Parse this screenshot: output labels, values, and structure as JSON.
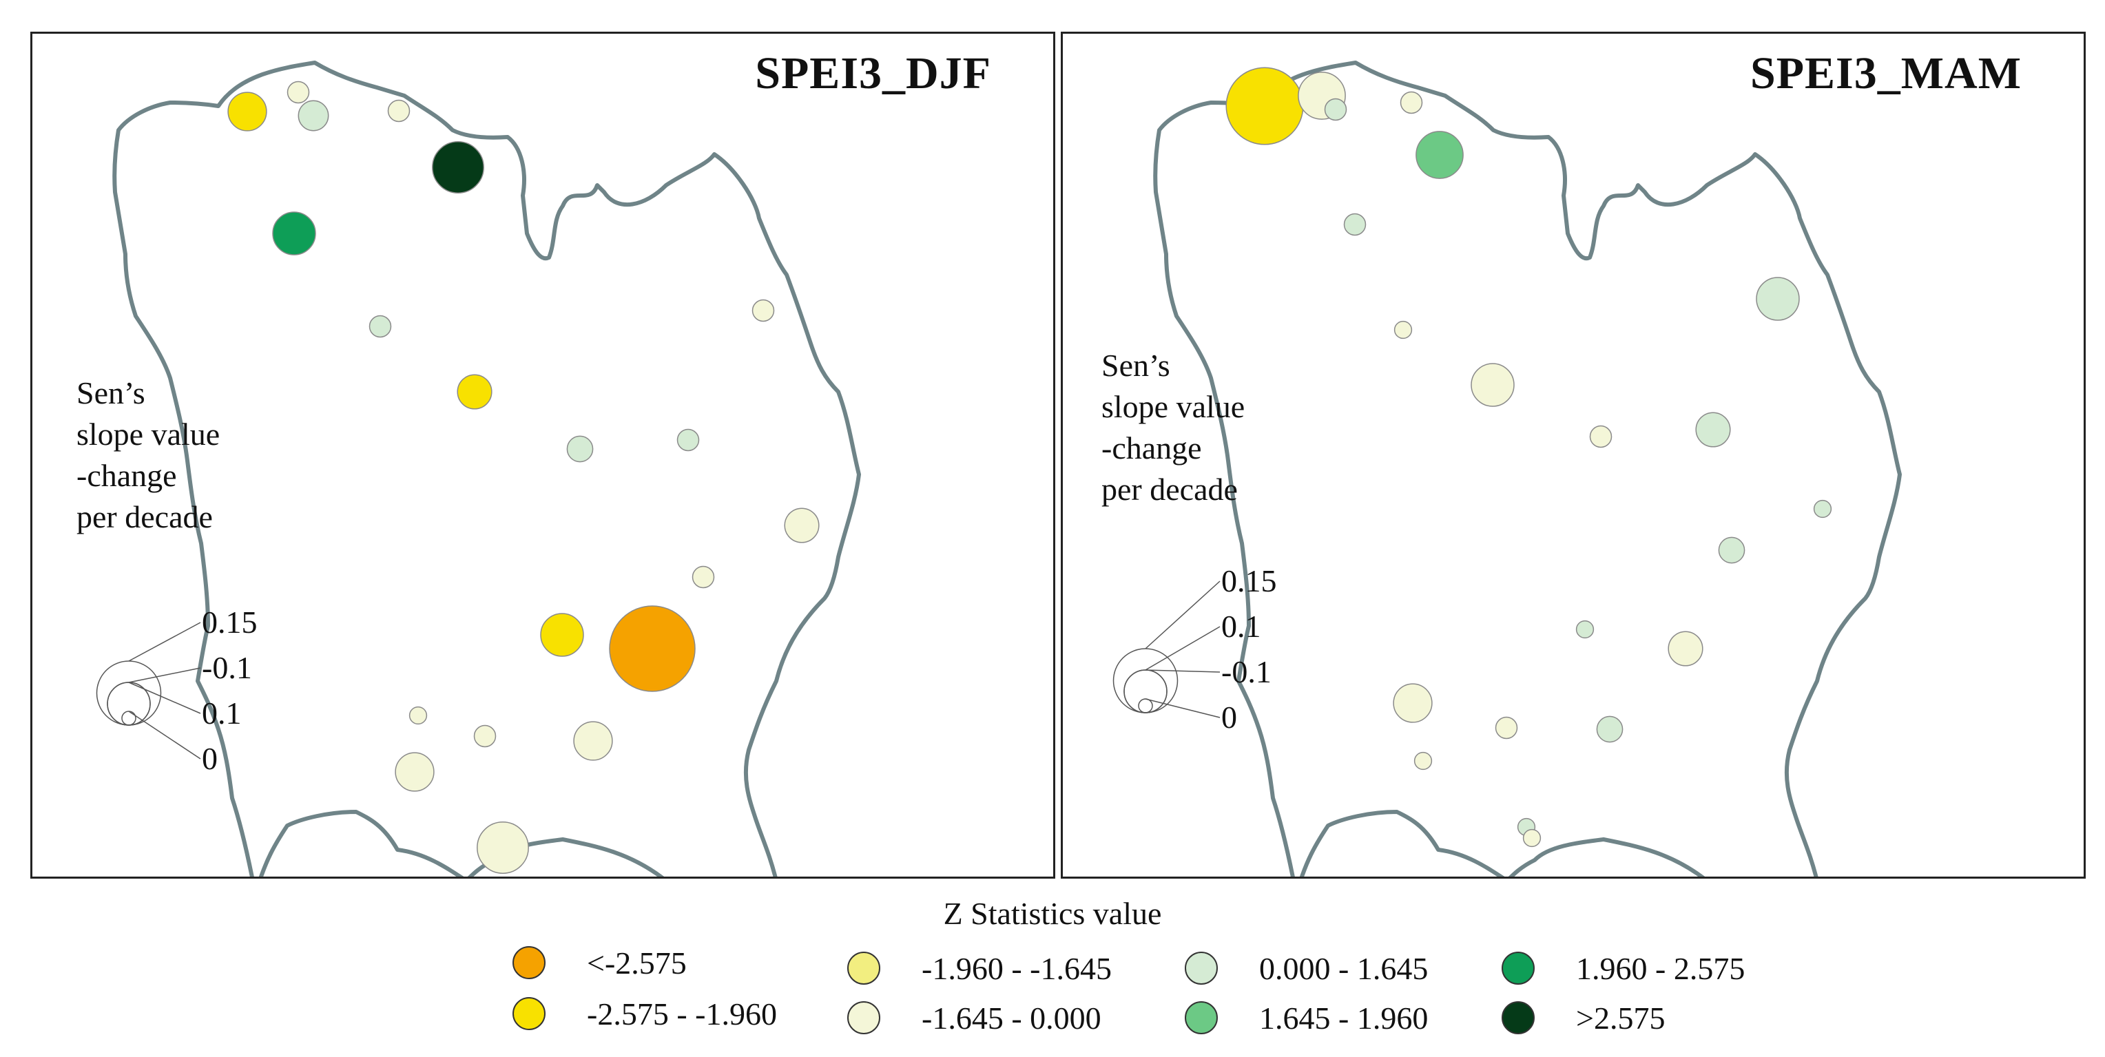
{
  "panels": [
    {
      "title": "SPEI3_DJF",
      "scale_title_lines": [
        "Sen’s",
        "slope value",
        "-change",
        "per decade"
      ],
      "scale_labels": [
        "0.15",
        "-0.1",
        "0.1",
        "0"
      ],
      "stations": [
        {
          "name": "NW corner",
          "class": "neg_1960_2575",
          "slope": 0.09
        },
        {
          "name": "N coast 1",
          "class": "neg_1645_0",
          "slope": 0.05
        },
        {
          "name": "N coast 2",
          "class": "pos_0_1645",
          "slope": 0.07
        },
        {
          "name": "N coast 3",
          "class": "neg_1645_0",
          "slope": 0.05
        },
        {
          "name": "N bay",
          "class": "gt_2575",
          "slope": 0.12
        },
        {
          "name": "W border",
          "class": "pos_1960_2575",
          "slope": 0.1
        },
        {
          "name": "W central",
          "class": "pos_0_1645",
          "slope": 0.05
        },
        {
          "name": "NE",
          "class": "neg_1645_0",
          "slope": 0.05
        },
        {
          "name": "Central N",
          "class": "neg_1960_2575",
          "slope": 0.08
        },
        {
          "name": "Central 1",
          "class": "pos_0_1645",
          "slope": 0.06
        },
        {
          "name": "Central 2",
          "class": "pos_0_1645",
          "slope": 0.05
        },
        {
          "name": "E border",
          "class": "neg_1645_0",
          "slope": 0.08
        },
        {
          "name": "E central",
          "class": "neg_1645_0",
          "slope": 0.05
        },
        {
          "name": "S central 1",
          "class": "neg_1960_2575",
          "slope": 0.1
        },
        {
          "name": "S central 2",
          "class": "lt_neg2575",
          "slope": 0.2
        },
        {
          "name": "SW 1",
          "class": "neg_1645_0",
          "slope": 0.04
        },
        {
          "name": "SW 2",
          "class": "neg_1645_0",
          "slope": 0.05
        },
        {
          "name": "S 1",
          "class": "neg_1645_0",
          "slope": 0.09
        },
        {
          "name": "SW 3",
          "class": "neg_1645_0",
          "slope": 0.09
        },
        {
          "name": "S 2",
          "class": "neg_1645_0",
          "slope": 0.12
        }
      ]
    },
    {
      "title": "SPEI3_MAM",
      "scale_title_lines": [
        "Sen’s",
        "slope value",
        "-change",
        "per decade"
      ],
      "scale_labels": [
        "0.15",
        "0.1",
        "-0.1",
        "0"
      ],
      "stations": [
        {
          "name": "NW corner",
          "class": "neg_1960_2575",
          "slope": 0.18
        },
        {
          "name": "N coast 1",
          "class": "neg_1645_0",
          "slope": 0.11
        },
        {
          "name": "N coast 2",
          "class": "pos_0_1645",
          "slope": 0.05
        },
        {
          "name": "N coast 3",
          "class": "neg_1645_0",
          "slope": 0.05
        },
        {
          "name": "N bay",
          "class": "pos_1645_1960",
          "slope": 0.11
        },
        {
          "name": "W border",
          "class": "pos_0_1645",
          "slope": 0.05
        },
        {
          "name": "NE",
          "class": "pos_0_1645",
          "slope": 0.1
        },
        {
          "name": "W central",
          "class": "neg_1645_0",
          "slope": 0.04
        },
        {
          "name": "Central N",
          "class": "neg_1645_0",
          "slope": 0.1
        },
        {
          "name": "Central 1",
          "class": "neg_1645_0",
          "slope": 0.05
        },
        {
          "name": "Central 2",
          "class": "pos_0_1645",
          "slope": 0.08
        },
        {
          "name": "E border",
          "class": "pos_0_1645",
          "slope": 0.04
        },
        {
          "name": "E central",
          "class": "pos_0_1645",
          "slope": 0.06
        },
        {
          "name": "S central 1",
          "class": "pos_0_1645",
          "slope": 0.04
        },
        {
          "name": "S central 2",
          "class": "neg_1645_0",
          "slope": 0.08
        },
        {
          "name": "SW 1",
          "class": "neg_1645_0",
          "slope": 0.09
        },
        {
          "name": "SW 2",
          "class": "neg_1645_0",
          "slope": 0.05
        },
        {
          "name": "S 1",
          "class": "pos_0_1645",
          "slope": 0.06
        },
        {
          "name": "SW 3",
          "class": "neg_1645_0",
          "slope": 0.04
        },
        {
          "name": "S 2",
          "class": "pos_0_1645",
          "slope": 0.04
        },
        {
          "name": "S 3",
          "class": "neg_1645_0",
          "slope": 0.04
        }
      ]
    }
  ],
  "legend": {
    "title": "Z Statistics value",
    "items": [
      {
        "key": "lt_neg2575",
        "label": "<-2.575",
        "color": "#F5A200"
      },
      {
        "key": "neg_1960_2575",
        "label": "-2.575 - -1.960",
        "color": "#F8E100"
      },
      {
        "key": "neg_1960_1645",
        "label": "-1.960 - -1.645",
        "color": "#F2EE80"
      },
      {
        "key": "neg_1645_0",
        "label": "-1.645 - 0.000",
        "color": "#F4F6D8"
      },
      {
        "key": "pos_0_1645",
        "label": "0.000 - 1.645",
        "color": "#D5EBD4"
      },
      {
        "key": "pos_1645_1960",
        "label": "1.645 - 1.960",
        "color": "#6CC985"
      },
      {
        "key": "pos_1960_2575",
        "label": "1.960 - 2.575",
        "color": "#0E9E57"
      },
      {
        "key": "gt_2575",
        "label": ">2.575",
        "color": "#053A18"
      }
    ]
  }
}
